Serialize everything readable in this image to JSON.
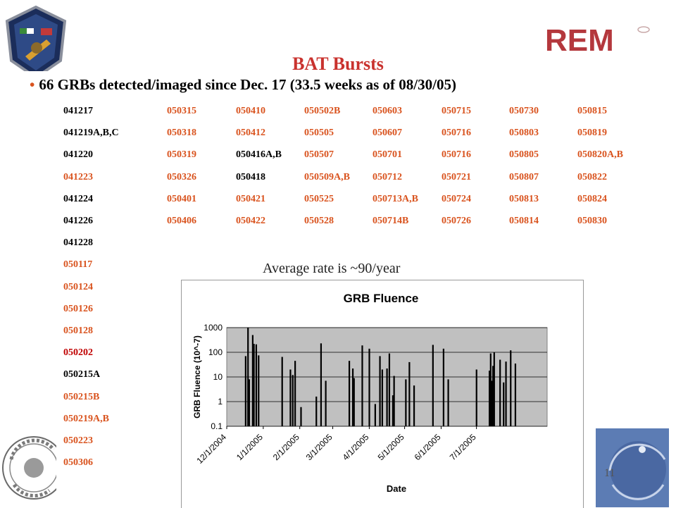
{
  "slide": {
    "title": "BAT Bursts",
    "headline": "66 GRBs detected/imaged  since Dec. 17 (33.5 weeks as of 08/30/05)",
    "bullet": "•",
    "average_rate": "Average rate is ~90/year",
    "page_number": "11",
    "logos": {
      "left_patch": "mission-patch",
      "right_top": "REM",
      "bottom_left": "university-seal",
      "bottom_right": "INAF"
    }
  },
  "grb_table": [
    [
      "041217",
      "050315",
      "050410",
      "050502B",
      "050603",
      "050715",
      "050730",
      "050815"
    ],
    [
      "041219A,B,C",
      "050318",
      "050412",
      "050505",
      "050607",
      "050716",
      "050803",
      "050819"
    ],
    [
      "041220",
      "050319",
      "050416A,B",
      "050507",
      "050701",
      "050716",
      "050805",
      "050820A,B"
    ],
    [
      "041223",
      "050326",
      "050418",
      "050509A,B",
      "050712",
      "050721",
      "050807",
      "050822"
    ],
    [
      "041224",
      "050401",
      "050421",
      "050525",
      "050713A,B",
      "050724",
      "050813",
      "050824"
    ],
    [
      "041226",
      "050406",
      "050422",
      "050528",
      "050714B",
      "050726",
      "050814",
      "050830"
    ],
    [
      "041228"
    ],
    [
      "050117"
    ],
    [
      "050124"
    ],
    [
      "050126"
    ],
    [
      "050128"
    ],
    [
      "050202"
    ],
    [
      "050215A"
    ],
    [
      "050215B"
    ],
    [
      "050219A,B"
    ],
    [
      "050223"
    ],
    [
      "050306"
    ]
  ],
  "grb_colors": {
    "orange": "#d9531e",
    "black": "#000000",
    "red": "#c00000"
  },
  "chart_data": {
    "type": "bar",
    "title": "GRB Fluence",
    "xlabel": "Date",
    "ylabel": "GRB Fluence (10^-7)",
    "yscale": "log",
    "ylim": [
      0.1,
      1000
    ],
    "yticks": [
      "1000",
      "100",
      "10",
      "1",
      "0.1"
    ],
    "xticks": [
      "12/1/2004",
      "1/1/2005",
      "2/1/2005",
      "3/1/2005",
      "4/1/2005",
      "5/1/2005",
      "6/1/2005",
      "7/1/2005"
    ],
    "xlim": [
      "2004-12-01",
      "2005-08-30"
    ],
    "plot_background": "#c0c0c0",
    "bar_color": "#000000",
    "grid": "horizontal",
    "legend": "none",
    "points": [
      {
        "x": "2004-12-17",
        "y": 70
      },
      {
        "x": "2004-12-19",
        "y": 1000
      },
      {
        "x": "2004-12-20",
        "y": 8
      },
      {
        "x": "2004-12-23",
        "y": 500
      },
      {
        "x": "2004-12-24",
        "y": 220
      },
      {
        "x": "2004-12-26",
        "y": 210
      },
      {
        "x": "2004-12-28",
        "y": 75
      },
      {
        "x": "2005-01-17",
        "y": 65
      },
      {
        "x": "2005-01-24",
        "y": 20
      },
      {
        "x": "2005-01-26",
        "y": 12
      },
      {
        "x": "2005-01-28",
        "y": 45
      },
      {
        "x": "2005-02-02",
        "y": 0.6
      },
      {
        "x": "2005-02-15",
        "y": 1.6
      },
      {
        "x": "2005-02-19",
        "y": 230
      },
      {
        "x": "2005-02-23",
        "y": 7
      },
      {
        "x": "2005-03-15",
        "y": 45
      },
      {
        "x": "2005-03-18",
        "y": 22
      },
      {
        "x": "2005-03-19",
        "y": 9
      },
      {
        "x": "2005-03-26",
        "y": 190
      },
      {
        "x": "2005-04-01",
        "y": 140
      },
      {
        "x": "2005-04-06",
        "y": 0.8
      },
      {
        "x": "2005-04-10",
        "y": 70
      },
      {
        "x": "2005-04-12",
        "y": 20
      },
      {
        "x": "2005-04-16",
        "y": 22
      },
      {
        "x": "2005-04-18",
        "y": 90
      },
      {
        "x": "2005-04-21",
        "y": 1.8
      },
      {
        "x": "2005-04-22",
        "y": 11
      },
      {
        "x": "2005-05-02",
        "y": 8
      },
      {
        "x": "2005-05-05",
        "y": 40
      },
      {
        "x": "2005-05-09",
        "y": 4.5
      },
      {
        "x": "2005-05-25",
        "y": 200
      },
      {
        "x": "2005-06-03",
        "y": 140
      },
      {
        "x": "2005-06-07",
        "y": 8
      },
      {
        "x": "2005-07-01",
        "y": 20
      },
      {
        "x": "2005-07-12",
        "y": 18
      },
      {
        "x": "2005-07-13",
        "y": 90
      },
      {
        "x": "2005-07-14",
        "y": 7
      },
      {
        "x": "2005-07-15",
        "y": 28
      },
      {
        "x": "2005-07-16",
        "y": 100
      },
      {
        "x": "2005-07-21",
        "y": 50
      },
      {
        "x": "2005-07-24",
        "y": 6
      },
      {
        "x": "2005-07-26",
        "y": 42
      },
      {
        "x": "2005-07-30",
        "y": 120
      },
      {
        "x": "2005-08-03",
        "y": 35
      }
    ]
  }
}
